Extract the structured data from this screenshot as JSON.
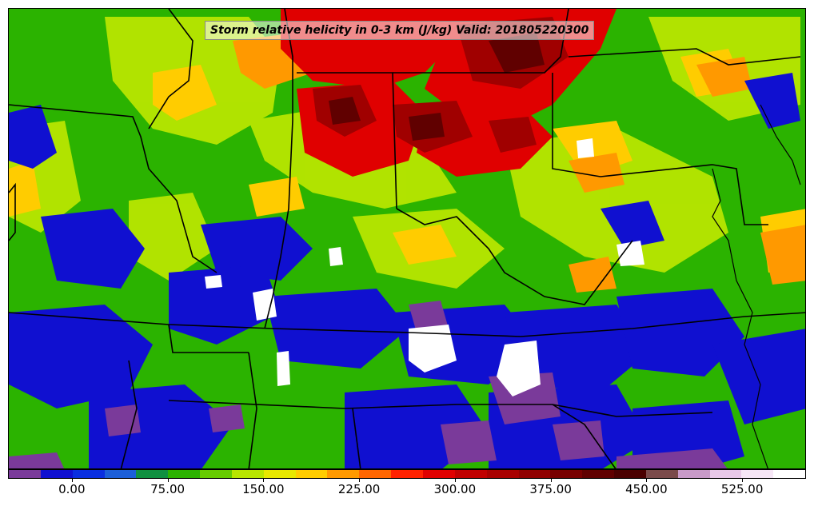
{
  "title": "Storm relative helicity in 0-3 km (J/kg) Valid: 201805220300",
  "colorbar": {
    "colors": [
      "#7a3a9a",
      "#1010d0",
      "#0a2fe0",
      "#1c5fd8",
      "#109040",
      "#2bb300",
      "#66cc00",
      "#b8e600",
      "#e8e800",
      "#ffcc00",
      "#ff9900",
      "#ff6600",
      "#ff2200",
      "#e00000",
      "#c00000",
      "#a80000",
      "#900000",
      "#780000",
      "#600000",
      "#4a0000",
      "#7a4a4a",
      "#c89ac8",
      "#e8c8e8",
      "#f6e6f6",
      "#ffffff"
    ],
    "tick_labels": [
      "0.00",
      "75.00",
      "150.00",
      "225.00",
      "300.00",
      "375.00",
      "450.00",
      "525.00"
    ]
  },
  "map_colors": {
    "purple": "#7a3a9a",
    "blue": "#1010d0",
    "dark_green": "#109040",
    "green": "#2bb300",
    "light_green": "#66cc00",
    "yellow_green": "#b8e600",
    "yellow": "#ffcc00",
    "orange": "#ff9900",
    "red_orange": "#ff4400",
    "red": "#e00000",
    "dark_red": "#a00000",
    "maroon": "#600000",
    "white": "#ffffff",
    "border": "#000000"
  }
}
